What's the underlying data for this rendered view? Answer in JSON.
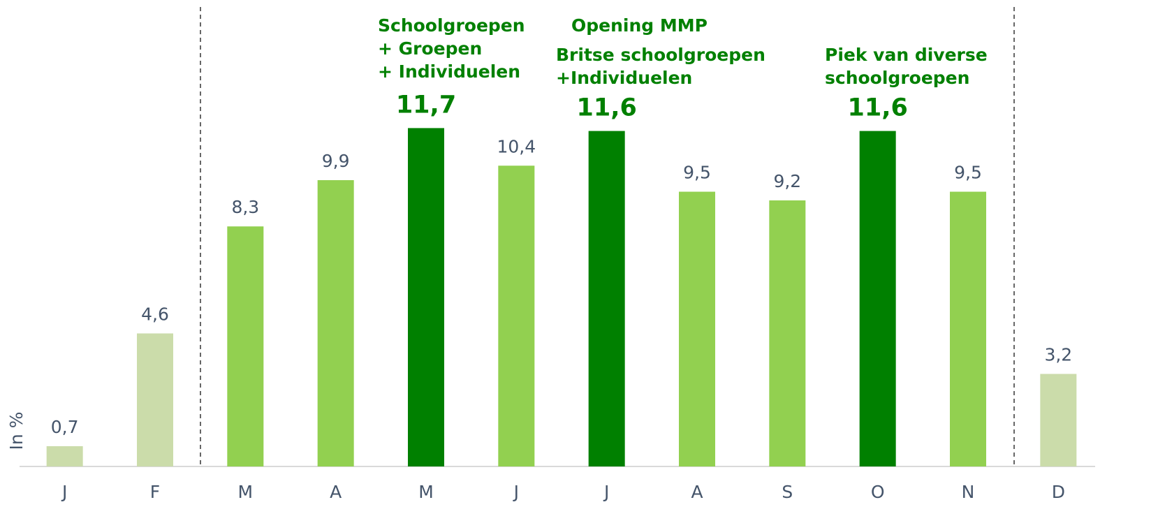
{
  "chart_data": {
    "type": "bar",
    "y_axis_label": "In %",
    "categories": [
      "J",
      "F",
      "M",
      "A",
      "M",
      "J",
      "J",
      "A",
      "S",
      "O",
      "N",
      "D"
    ],
    "values": [
      0.7,
      4.6,
      8.3,
      9.9,
      11.7,
      10.4,
      11.6,
      9.5,
      9.2,
      11.6,
      9.5,
      3.2
    ],
    "value_labels": [
      "0,7",
      "4,6",
      "8,3",
      "9,9",
      "11,7",
      "10,4",
      "11,6",
      "9,5",
      "9,2",
      "11,6",
      "9,5",
      "3,2"
    ],
    "colors": [
      "#cbdcaa",
      "#cbdcaa",
      "#92d050",
      "#92d050",
      "#008000",
      "#92d050",
      "#008000",
      "#92d050",
      "#92d050",
      "#008000",
      "#92d050",
      "#cbdcaa"
    ],
    "ylim": [
      0,
      12
    ],
    "annotations": [
      {
        "text": [
          "Schoolgroepen",
          "+ Groepen",
          "+ Individuelen"
        ]
      },
      {
        "text": [
          "Opening MMP"
        ]
      },
      {
        "text": [
          "Britse schoolgroepen",
          "+Individuelen"
        ]
      },
      {
        "text": [
          "Piek van diverse",
          "schoolgroepen"
        ]
      }
    ]
  }
}
